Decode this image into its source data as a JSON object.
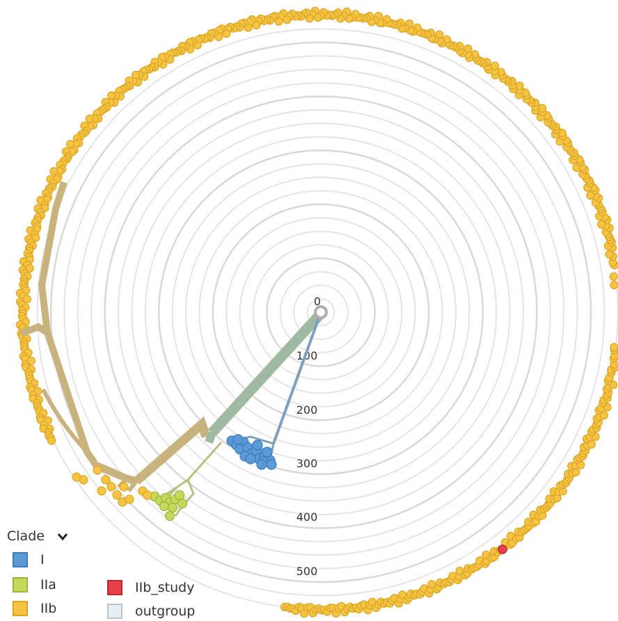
{
  "tree": {
    "center_node_color": "#aeaeae",
    "radial_axis": {
      "ring_count": 22,
      "major_labels": [
        "0",
        "100",
        "200",
        "300",
        "400",
        "500"
      ]
    },
    "branch_colors": {
      "root": "#9fbaa0",
      "clade_I": "#7f9fc0",
      "clade_IIa": "#b8c080",
      "clade_IIb": "#c8b27e"
    }
  },
  "legend": {
    "title": "Clade",
    "toggle_icon": "chevron-down-icon",
    "items": [
      {
        "label": "I",
        "fill": "#5b9bd5",
        "border": "#3a7bbd"
      },
      {
        "label": "IIa",
        "fill": "#c6d85a",
        "border": "#9fb23c"
      },
      {
        "label": "IIb",
        "fill": "#f6c342",
        "border": "#d9a520"
      },
      {
        "label": "IIb_study",
        "fill": "#e8404a",
        "border": "#c02630"
      },
      {
        "label": "outgroup",
        "fill": "#e9eef2",
        "border": "#b9c4cc"
      }
    ]
  }
}
